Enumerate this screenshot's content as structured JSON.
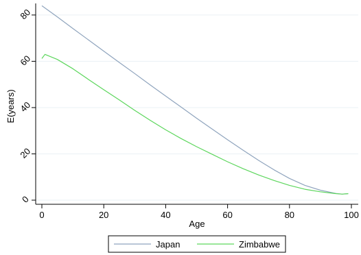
{
  "chart_data": {
    "type": "line",
    "xlabel": "Age",
    "ylabel": "E(years)",
    "xlim": [
      0,
      100
    ],
    "ylim": [
      0,
      85
    ],
    "xticks": [
      0,
      20,
      40,
      60,
      80,
      100
    ],
    "yticks": [
      0,
      20,
      40,
      60,
      80
    ],
    "grid": "horizontal",
    "legend_position": "bottom",
    "series": [
      {
        "name": "Japan",
        "color": "#8fa4bd",
        "x": [
          0,
          5,
          10,
          15,
          20,
          25,
          30,
          35,
          40,
          45,
          50,
          55,
          60,
          65,
          70,
          75,
          80,
          85,
          90,
          95,
          97,
          99
        ],
        "values": [
          84.0,
          79.2,
          74.2,
          69.3,
          64.4,
          59.5,
          54.7,
          49.8,
          45.0,
          40.2,
          35.4,
          30.7,
          26.1,
          21.6,
          17.2,
          13.1,
          9.4,
          6.4,
          4.3,
          2.9,
          2.6,
          2.8
        ]
      },
      {
        "name": "Zimbabwe",
        "color": "#5cd65c",
        "x": [
          0,
          1,
          5,
          10,
          15,
          20,
          25,
          30,
          35,
          40,
          45,
          50,
          55,
          60,
          65,
          70,
          75,
          80,
          85,
          90,
          95,
          97,
          99
        ],
        "values": [
          61.2,
          63.0,
          60.8,
          56.8,
          52.2,
          47.7,
          43.3,
          38.8,
          34.5,
          30.4,
          26.6,
          23.1,
          19.8,
          16.6,
          13.6,
          10.9,
          8.5,
          6.4,
          4.7,
          3.6,
          2.8,
          2.6,
          2.8
        ]
      }
    ]
  }
}
